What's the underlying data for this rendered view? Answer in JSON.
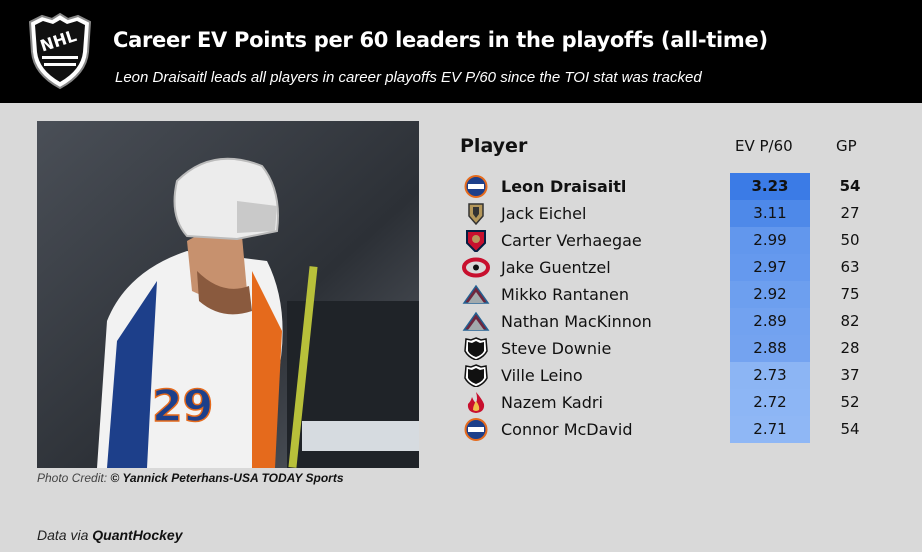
{
  "header": {
    "title": "Career EV Points per 60 leaders in the playoffs (all-time)",
    "subtitle": "Leon Draisaitl leads all players in career playoffs EV P/60 since the TOI stat was tracked",
    "logo_icon": "nhl-shield-logo"
  },
  "photo": {
    "credit_label": "Photo Credit:",
    "credit_value": "© Yannick Peterhans-USA TODAY Sports",
    "jersey_number": "29",
    "icon": "player-celebration-photo"
  },
  "footer": {
    "source_label": "Data via",
    "source_value": "QuantHockey"
  },
  "colors": {
    "bar_max": "#3b7be6",
    "bar_min": "#8fb7f5",
    "header_bg": "#000000",
    "page_bg": "#d9d9d9"
  },
  "chart_data": {
    "type": "table",
    "columns": [
      "Player",
      "EV P/60",
      "GP"
    ],
    "rows": [
      {
        "player": "Leon Draisaitl",
        "team_icon": "oilers-logo-icon",
        "ev_p60": 3.23,
        "ev_p60_label": "3.23",
        "gp": 54,
        "gp_label": "54"
      },
      {
        "player": "Jack Eichel",
        "team_icon": "golden-knights-logo-icon",
        "ev_p60": 3.11,
        "ev_p60_label": "3.11",
        "gp": 27,
        "gp_label": "27"
      },
      {
        "player": "Carter Verhaegae",
        "team_icon": "panthers-logo-icon",
        "ev_p60": 2.99,
        "ev_p60_label": "2.99",
        "gp": 50,
        "gp_label": "50"
      },
      {
        "player": "Jake Guentzel",
        "team_icon": "hurricanes-logo-icon",
        "ev_p60": 2.97,
        "ev_p60_label": "2.97",
        "gp": 63,
        "gp_label": "63"
      },
      {
        "player": "Mikko Rantanen",
        "team_icon": "avalanche-logo-icon",
        "ev_p60": 2.92,
        "ev_p60_label": "2.92",
        "gp": 75,
        "gp_label": "75"
      },
      {
        "player": "Nathan MacKinnon",
        "team_icon": "avalanche-logo-icon",
        "ev_p60": 2.89,
        "ev_p60_label": "2.89",
        "gp": 82,
        "gp_label": "82"
      },
      {
        "player": "Steve Downie",
        "team_icon": "nhl-logo-icon",
        "ev_p60": 2.88,
        "ev_p60_label": "2.88",
        "gp": 28,
        "gp_label": "28"
      },
      {
        "player": "Ville Leino",
        "team_icon": "nhl-logo-icon",
        "ev_p60": 2.73,
        "ev_p60_label": "2.73",
        "gp": 37,
        "gp_label": "37"
      },
      {
        "player": "Nazem Kadri",
        "team_icon": "flames-logo-icon",
        "ev_p60": 2.72,
        "ev_p60_label": "2.72",
        "gp": 52,
        "gp_label": "52"
      },
      {
        "player": "Connor McDavid",
        "team_icon": "oilers-logo-icon",
        "ev_p60": 2.71,
        "ev_p60_label": "2.71",
        "gp": 54,
        "gp_label": "54"
      }
    ]
  }
}
